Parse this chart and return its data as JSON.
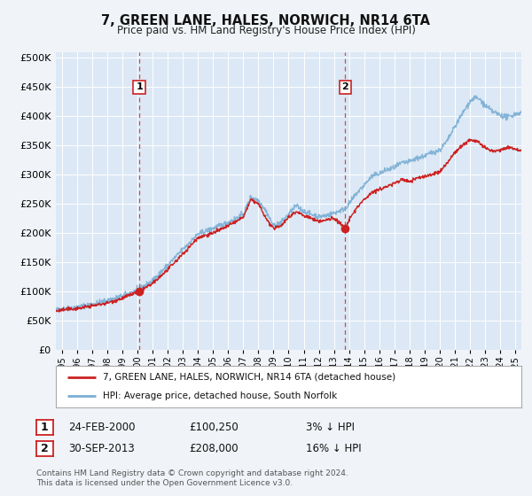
{
  "title": "7, GREEN LANE, HALES, NORWICH, NR14 6TA",
  "subtitle": "Price paid vs. HM Land Registry's House Price Index (HPI)",
  "background_color": "#f0f4f8",
  "plot_bg_color": "#dce8f5",
  "sale1_price": 100250,
  "sale1_hpi_diff": "3% ↓ HPI",
  "sale1_date_str": "24-FEB-2000",
  "sale1_x": 2000.12,
  "sale1_y": 100250,
  "sale2_price": 208000,
  "sale2_hpi_diff": "16% ↓ HPI",
  "sale2_date_str": "30-SEP-2013",
  "sale2_x": 2013.75,
  "sale2_y": 208000,
  "hpi_color": "#7bafd4",
  "price_color": "#cc2222",
  "dashed_line_color": "#dd4444",
  "ylabel_values": [
    0,
    50000,
    100000,
    150000,
    200000,
    250000,
    300000,
    350000,
    400000,
    450000,
    500000
  ],
  "ylim": [
    0,
    510000
  ],
  "xmin": 1994.6,
  "xmax": 2025.4,
  "legend_label1": "7, GREEN LANE, HALES, NORWICH, NR14 6TA (detached house)",
  "legend_label2": "HPI: Average price, detached house, South Norfolk",
  "footnote1": "Contains HM Land Registry data © Crown copyright and database right 2024.",
  "footnote2": "This data is licensed under the Open Government Licence v3.0.",
  "hpi_anchors": [
    [
      1994.6,
      68000
    ],
    [
      1995.0,
      70000
    ],
    [
      1996.0,
      73000
    ],
    [
      1997.0,
      78000
    ],
    [
      1998.0,
      84000
    ],
    [
      1999.0,
      92000
    ],
    [
      2000.0,
      102000
    ],
    [
      2001.0,
      118000
    ],
    [
      2002.0,
      145000
    ],
    [
      2003.0,
      172000
    ],
    [
      2004.0,
      198000
    ],
    [
      2005.0,
      208000
    ],
    [
      2006.0,
      218000
    ],
    [
      2007.0,
      232000
    ],
    [
      2007.5,
      262000
    ],
    [
      2008.0,
      256000
    ],
    [
      2008.5,
      238000
    ],
    [
      2009.0,
      212000
    ],
    [
      2009.5,
      218000
    ],
    [
      2010.0,
      232000
    ],
    [
      2010.5,
      247000
    ],
    [
      2011.0,
      237000
    ],
    [
      2011.5,
      232000
    ],
    [
      2012.0,
      228000
    ],
    [
      2012.5,
      230000
    ],
    [
      2013.0,
      234000
    ],
    [
      2013.75,
      242000
    ],
    [
      2014.0,
      250000
    ],
    [
      2014.5,
      268000
    ],
    [
      2015.0,
      282000
    ],
    [
      2015.5,
      297000
    ],
    [
      2016.0,
      302000
    ],
    [
      2016.5,
      308000
    ],
    [
      2017.0,
      312000
    ],
    [
      2017.5,
      320000
    ],
    [
      2018.0,
      322000
    ],
    [
      2018.5,
      328000
    ],
    [
      2019.0,
      332000
    ],
    [
      2019.5,
      338000
    ],
    [
      2020.0,
      342000
    ],
    [
      2020.5,
      358000
    ],
    [
      2021.0,
      382000
    ],
    [
      2021.5,
      405000
    ],
    [
      2022.0,
      425000
    ],
    [
      2022.3,
      432000
    ],
    [
      2022.7,
      428000
    ],
    [
      2023.0,
      418000
    ],
    [
      2023.5,
      408000
    ],
    [
      2024.0,
      402000
    ],
    [
      2024.5,
      398000
    ],
    [
      2025.0,
      404000
    ],
    [
      2025.4,
      406000
    ]
  ],
  "price_anchors": [
    [
      1994.6,
      66000
    ],
    [
      1995.0,
      68000
    ],
    [
      1996.0,
      70500
    ],
    [
      1997.0,
      75000
    ],
    [
      1998.0,
      80000
    ],
    [
      1999.0,
      88000
    ],
    [
      2000.12,
      100250
    ],
    [
      2001.0,
      113000
    ],
    [
      2002.0,
      137000
    ],
    [
      2003.0,
      164000
    ],
    [
      2004.0,
      192000
    ],
    [
      2005.0,
      200000
    ],
    [
      2006.0,
      212000
    ],
    [
      2007.0,
      227000
    ],
    [
      2007.5,
      257000
    ],
    [
      2008.0,
      250000
    ],
    [
      2008.5,
      225000
    ],
    [
      2009.0,
      207000
    ],
    [
      2009.5,
      213000
    ],
    [
      2010.0,
      227000
    ],
    [
      2010.5,
      237000
    ],
    [
      2011.0,
      230000
    ],
    [
      2011.5,
      225000
    ],
    [
      2012.0,
      220000
    ],
    [
      2012.5,
      222000
    ],
    [
      2013.0,
      226000
    ],
    [
      2013.75,
      208000
    ],
    [
      2014.0,
      222000
    ],
    [
      2014.5,
      243000
    ],
    [
      2015.0,
      257000
    ],
    [
      2015.5,
      270000
    ],
    [
      2016.0,
      274000
    ],
    [
      2016.5,
      280000
    ],
    [
      2017.0,
      285000
    ],
    [
      2017.5,
      292000
    ],
    [
      2018.0,
      288000
    ],
    [
      2018.5,
      294000
    ],
    [
      2019.0,
      297000
    ],
    [
      2019.5,
      300000
    ],
    [
      2020.0,
      305000
    ],
    [
      2020.5,
      320000
    ],
    [
      2021.0,
      338000
    ],
    [
      2021.5,
      350000
    ],
    [
      2022.0,
      360000
    ],
    [
      2022.5,
      357000
    ],
    [
      2023.0,
      345000
    ],
    [
      2023.5,
      340000
    ],
    [
      2024.0,
      342000
    ],
    [
      2024.5,
      347000
    ],
    [
      2025.0,
      344000
    ],
    [
      2025.4,
      342000
    ]
  ]
}
